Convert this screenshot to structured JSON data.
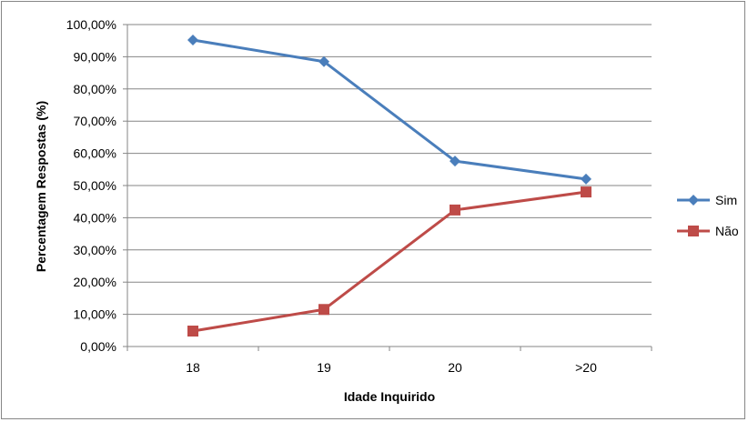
{
  "chart_data": {
    "type": "line",
    "title": "",
    "xlabel": "Idade Inquirido",
    "ylabel": "Percentagem Respostas (%)",
    "categories": [
      "18",
      "19",
      "20",
      ">20"
    ],
    "ylim": [
      0,
      100
    ],
    "yticks": [
      0,
      10,
      20,
      30,
      40,
      50,
      60,
      70,
      80,
      90,
      100
    ],
    "ytick_labels": [
      "0,00%",
      "10,00%",
      "20,00%",
      "30,00%",
      "40,00%",
      "50,00%",
      "60,00%",
      "70,00%",
      "80,00%",
      "90,00%",
      "100,00%"
    ],
    "grid": true,
    "legend_position": "right",
    "series": [
      {
        "name": "Sim",
        "values": [
          95.2,
          88.5,
          57.6,
          52.0
        ],
        "color": "#4a7ebb",
        "marker": "diamond"
      },
      {
        "name": "Não",
        "values": [
          4.8,
          11.5,
          42.4,
          48.0
        ],
        "color": "#be4b48",
        "marker": "square"
      }
    ]
  }
}
